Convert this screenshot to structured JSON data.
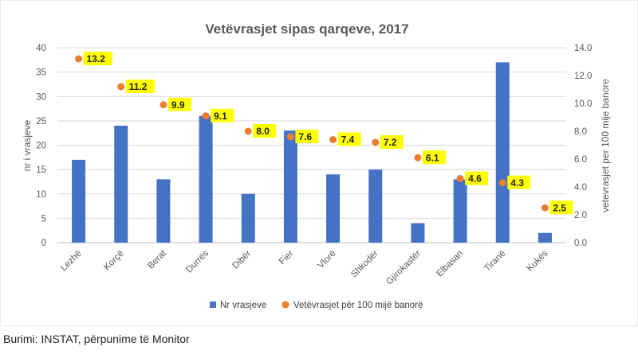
{
  "chart_data": {
    "type": "bar",
    "title": "Vetëvrasjet sipas qarqeve, 2017",
    "categories": [
      "Lezhë",
      "Korçë",
      "Berat",
      "Durrës",
      "Dibër",
      "Fier",
      "Vlorë",
      "Shkodër",
      "Gjirokastër",
      "Elbasan",
      "Tiranë",
      "Kukës"
    ],
    "series": [
      {
        "name": "Nr vrasjeve",
        "type": "bar",
        "axis": "left",
        "color": "#4472C4",
        "values": [
          17,
          24,
          13,
          26,
          10,
          23,
          14,
          15,
          4,
          13,
          37,
          2
        ]
      },
      {
        "name": "Vetëvrasjet për 100 mijë banorë",
        "type": "scatter",
        "axis": "right",
        "color": "#ED7D31",
        "values": [
          13.2,
          11.2,
          9.9,
          9.1,
          8.0,
          7.6,
          7.4,
          7.2,
          6.1,
          4.6,
          4.3,
          2.5
        ],
        "labels": [
          "13.2",
          "11.2",
          "9.9",
          "9.1",
          "8.0",
          "7.6",
          "7.4",
          "7.2",
          "6.1",
          "4.6",
          "4.3",
          "2.5"
        ]
      }
    ],
    "ylabel": "nr i vrasjeve",
    "y2label": "vetevrasjet per 100 mije banore",
    "ylim": [
      0,
      40
    ],
    "y2lim": [
      0,
      14
    ],
    "yticks": [
      "0",
      "5",
      "10",
      "15",
      "20",
      "25",
      "30",
      "35",
      "40"
    ],
    "y2ticks": [
      "0.0",
      "2.0",
      "4.0",
      "6.0",
      "8.0",
      "10.0",
      "12.0",
      "14.0"
    ],
    "grid": true,
    "legend": "bottom",
    "label_highlight_color": "#FFFF00"
  },
  "source": "Burimi: INSTAT, përpunime të Monitor"
}
